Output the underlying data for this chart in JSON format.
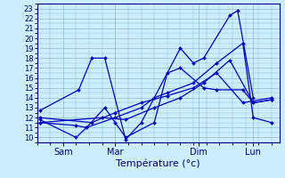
{
  "background_color": "#cceeff",
  "grid_color": "#88bbcc",
  "line_color": "#0000bb",
  "xlabel": "Température (°c)",
  "xlabel_fontsize": 8,
  "yticks": [
    10,
    11,
    12,
    13,
    14,
    15,
    16,
    17,
    18,
    19,
    20,
    21,
    22,
    23
  ],
  "ylim": [
    9.5,
    23.5
  ],
  "xlim": [
    0,
    9.3
  ],
  "xtick_positions": [
    1.0,
    3.0,
    6.2,
    8.3
  ],
  "xtick_labels": [
    "Sam",
    "Mar",
    "Dim",
    "Lun"
  ],
  "series": [
    {
      "x": [
        0.1,
        1.6,
        2.1,
        2.6,
        3.4,
        4.0,
        5.5,
        6.0,
        6.4,
        7.4,
        7.7,
        8.3
      ],
      "y": [
        12.7,
        14.8,
        18.0,
        18.0,
        9.8,
        11.5,
        19.0,
        17.5,
        18.0,
        22.3,
        22.8,
        14.0
      ]
    },
    {
      "x": [
        0.1,
        1.5,
        1.9,
        2.6,
        3.0,
        3.4,
        4.5,
        5.0,
        5.5,
        6.4,
        6.9,
        7.9,
        8.3,
        9.0
      ],
      "y": [
        11.5,
        11.2,
        11.0,
        13.0,
        11.5,
        10.0,
        11.5,
        16.5,
        17.0,
        15.0,
        14.8,
        14.8,
        13.5,
        13.8
      ]
    },
    {
      "x": [
        0.1,
        1.5,
        1.9,
        3.0,
        4.0,
        4.5,
        5.0,
        6.0,
        6.9,
        7.9,
        8.3,
        9.0
      ],
      "y": [
        11.8,
        10.0,
        11.0,
        12.0,
        13.0,
        14.0,
        14.5,
        15.5,
        17.5,
        19.5,
        12.0,
        11.5
      ]
    },
    {
      "x": [
        0.1,
        2.5,
        3.4,
        4.5,
        5.5,
        6.4,
        7.4,
        8.3,
        9.0
      ],
      "y": [
        11.5,
        12.0,
        11.8,
        13.0,
        14.0,
        15.5,
        17.8,
        13.5,
        13.8
      ]
    },
    {
      "x": [
        0.1,
        2.1,
        3.0,
        4.0,
        5.0,
        6.0,
        6.9,
        7.9,
        9.0
      ],
      "y": [
        12.0,
        11.5,
        12.5,
        13.5,
        14.2,
        15.0,
        16.5,
        13.5,
        14.0
      ]
    }
  ]
}
